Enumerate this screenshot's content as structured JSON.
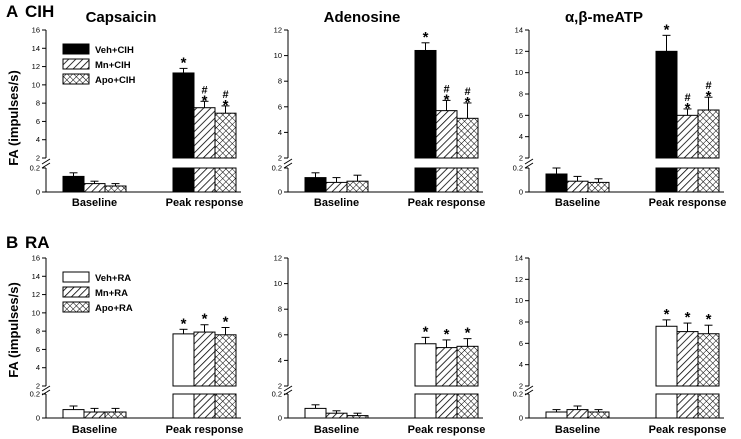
{
  "panels": [
    {
      "letter": "A",
      "name": "CIH"
    },
    {
      "letter": "B",
      "name": "RA"
    }
  ],
  "column_titles": [
    "Capsaicin",
    "Adenosine",
    "α,β-meATP"
  ],
  "ylabel": "FA (impulses/s)",
  "categories": [
    "Baseline",
    "Peak response"
  ],
  "legends": {
    "CIH": [
      "Veh+CIH",
      "Mn+CIH",
      "Apo+CIH"
    ],
    "RA": [
      "Veh+RA",
      "Mn+RA",
      "Apo+RA"
    ]
  },
  "markers": {
    "significance": "*",
    "hash": "#"
  },
  "colors": {
    "veh_cih": "#000000",
    "veh_ra": "#ffffff",
    "stroke": "#000000"
  },
  "chart_data": [
    {
      "type": "bar",
      "group": "CIH",
      "title": "Capsaicin",
      "ylabel": "FA (impulses/s)",
      "categories": [
        "Baseline",
        "Peak response"
      ],
      "axis_break": {
        "lower_range": [
          0,
          0.2
        ],
        "upper_range": [
          2,
          16
        ]
      },
      "yticks_lower": [
        "0",
        "0.2"
      ],
      "yticks_upper": [
        "2",
        "4",
        "6",
        "8",
        "10",
        "12",
        "14",
        "16"
      ],
      "series": [
        {
          "name": "Veh+CIH",
          "values": [
            0.13,
            11.3
          ],
          "errors": [
            0.03,
            0.5
          ],
          "markers": [
            "",
            "*"
          ]
        },
        {
          "name": "Mn+CIH",
          "values": [
            0.07,
            7.5
          ],
          "errors": [
            0.02,
            0.7
          ],
          "markers": [
            "",
            "#*"
          ]
        },
        {
          "name": "Apo+CIH",
          "values": [
            0.05,
            6.9
          ],
          "errors": [
            0.02,
            0.8
          ],
          "markers": [
            "",
            "#*"
          ]
        }
      ]
    },
    {
      "type": "bar",
      "group": "CIH",
      "title": "Adenosine",
      "ylabel": "FA (impulses/s)",
      "categories": [
        "Baseline",
        "Peak response"
      ],
      "axis_break": {
        "lower_range": [
          0,
          0.2
        ],
        "upper_range": [
          2,
          12
        ]
      },
      "yticks_lower": [
        "0",
        "0.2"
      ],
      "yticks_upper": [
        "2",
        "4",
        "6",
        "8",
        "10",
        "12"
      ],
      "series": [
        {
          "name": "Veh+CIH",
          "values": [
            0.12,
            10.4
          ],
          "errors": [
            0.04,
            0.6
          ],
          "markers": [
            "",
            "*"
          ]
        },
        {
          "name": "Mn+CIH",
          "values": [
            0.08,
            5.7
          ],
          "errors": [
            0.04,
            0.8
          ],
          "markers": [
            "",
            "#*"
          ]
        },
        {
          "name": "Apo+CIH",
          "values": [
            0.09,
            5.1
          ],
          "errors": [
            0.05,
            1.2
          ],
          "markers": [
            "",
            "#*"
          ]
        }
      ]
    },
    {
      "type": "bar",
      "group": "CIH",
      "title": "α,β-meATP",
      "ylabel": "FA (impulses/s)",
      "categories": [
        "Baseline",
        "Peak response"
      ],
      "axis_break": {
        "lower_range": [
          0,
          0.2
        ],
        "upper_range": [
          2,
          14
        ]
      },
      "yticks_lower": [
        "0",
        "0.2"
      ],
      "yticks_upper": [
        "2",
        "4",
        "6",
        "8",
        "10",
        "12",
        "14"
      ],
      "series": [
        {
          "name": "Veh+CIH",
          "values": [
            0.15,
            12.0
          ],
          "errors": [
            0.08,
            1.5
          ],
          "markers": [
            "",
            "*"
          ]
        },
        {
          "name": "Mn+CIH",
          "values": [
            0.09,
            6.0
          ],
          "errors": [
            0.04,
            0.6
          ],
          "markers": [
            "",
            "#*"
          ]
        },
        {
          "name": "Apo+CIH",
          "values": [
            0.08,
            6.5
          ],
          "errors": [
            0.03,
            1.2
          ],
          "markers": [
            "",
            "#*"
          ]
        }
      ]
    },
    {
      "type": "bar",
      "group": "RA",
      "title": "Capsaicin",
      "ylabel": "FA (impulses/s)",
      "categories": [
        "Baseline",
        "Peak response"
      ],
      "axis_break": {
        "lower_range": [
          0,
          0.2
        ],
        "upper_range": [
          2,
          16
        ]
      },
      "yticks_lower": [
        "0",
        "0.2"
      ],
      "yticks_upper": [
        "2",
        "4",
        "6",
        "8",
        "10",
        "12",
        "14",
        "16"
      ],
      "series": [
        {
          "name": "Veh+RA",
          "values": [
            0.07,
            7.7
          ],
          "errors": [
            0.03,
            0.5
          ],
          "markers": [
            "",
            "*"
          ]
        },
        {
          "name": "Mn+RA",
          "values": [
            0.05,
            7.9
          ],
          "errors": [
            0.03,
            0.8
          ],
          "markers": [
            "",
            "*"
          ]
        },
        {
          "name": "Apo+RA",
          "values": [
            0.05,
            7.6
          ],
          "errors": [
            0.03,
            0.8
          ],
          "markers": [
            "",
            "*"
          ]
        }
      ]
    },
    {
      "type": "bar",
      "group": "RA",
      "title": "Adenosine",
      "ylabel": "FA (impulses/s)",
      "categories": [
        "Baseline",
        "Peak response"
      ],
      "axis_break": {
        "lower_range": [
          0,
          0.2
        ],
        "upper_range": [
          2,
          12
        ]
      },
      "yticks_lower": [
        "0",
        "0.2"
      ],
      "yticks_upper": [
        "2",
        "4",
        "6",
        "8",
        "10",
        "12"
      ],
      "series": [
        {
          "name": "Veh+RA",
          "values": [
            0.08,
            5.3
          ],
          "errors": [
            0.03,
            0.5
          ],
          "markers": [
            "",
            "*"
          ]
        },
        {
          "name": "Mn+RA",
          "values": [
            0.04,
            5.0
          ],
          "errors": [
            0.02,
            0.6
          ],
          "markers": [
            "",
            "*"
          ]
        },
        {
          "name": "Apo+RA",
          "values": [
            0.02,
            5.1
          ],
          "errors": [
            0.02,
            0.6
          ],
          "markers": [
            "",
            "*"
          ]
        }
      ]
    },
    {
      "type": "bar",
      "group": "RA",
      "title": "α,β-meATP",
      "ylabel": "FA (impulses/s)",
      "categories": [
        "Baseline",
        "Peak response"
      ],
      "axis_break": {
        "lower_range": [
          0,
          0.2
        ],
        "upper_range": [
          2,
          14
        ]
      },
      "yticks_lower": [
        "0",
        "0.2"
      ],
      "yticks_upper": [
        "2",
        "4",
        "6",
        "8",
        "10",
        "12",
        "14"
      ],
      "series": [
        {
          "name": "Veh+RA",
          "values": [
            0.05,
            7.6
          ],
          "errors": [
            0.02,
            0.6
          ],
          "markers": [
            "",
            "*"
          ]
        },
        {
          "name": "Mn+RA",
          "values": [
            0.07,
            7.1
          ],
          "errors": [
            0.03,
            0.8
          ],
          "markers": [
            "",
            "*"
          ]
        },
        {
          "name": "Apo+RA",
          "values": [
            0.05,
            6.9
          ],
          "errors": [
            0.02,
            0.8
          ],
          "markers": [
            "",
            "*"
          ]
        }
      ]
    }
  ]
}
